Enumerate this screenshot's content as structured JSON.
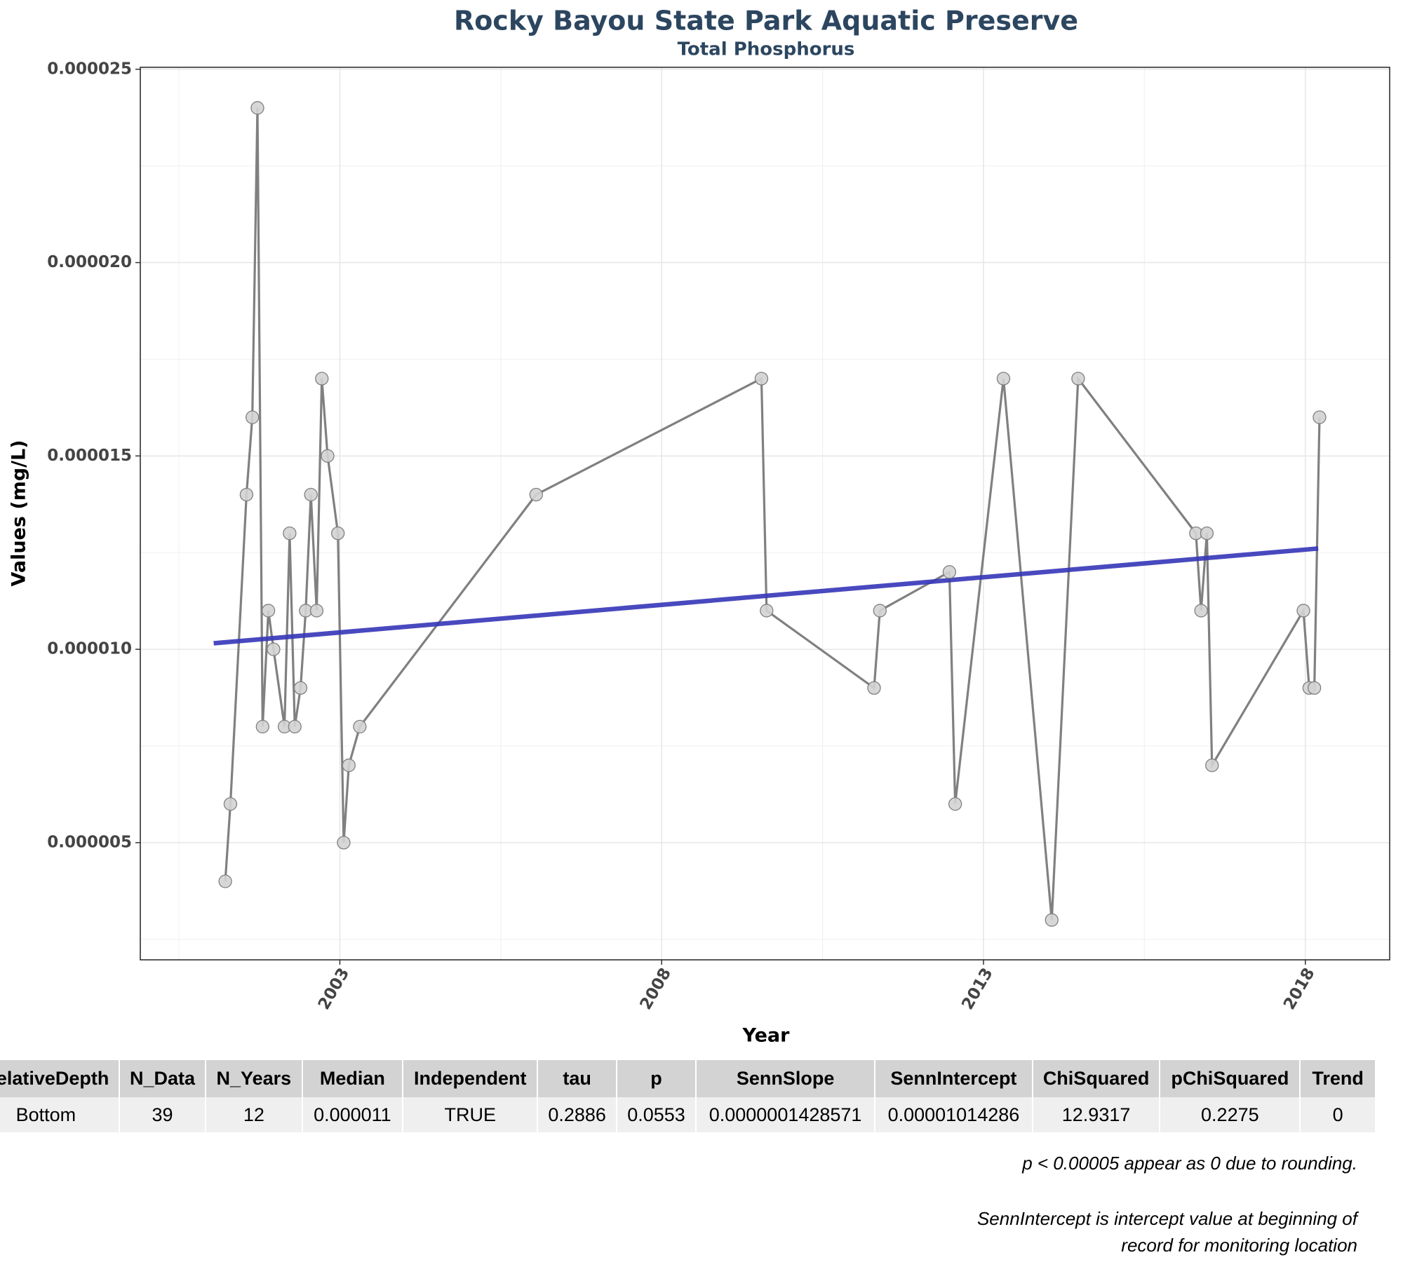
{
  "chart_data": {
    "type": "line",
    "title": "Rocky Bayou State Park Aquatic Preserve",
    "subtitle": "Total Phosphorus",
    "x_label": "Year",
    "y_label": "Values (mg/L)",
    "x": [
      2001.22,
      2001.3,
      2001.55,
      2001.64,
      2001.72,
      2001.8,
      2001.89,
      2001.97,
      2002.14,
      2002.22,
      2002.3,
      2002.39,
      2002.47,
      2002.55,
      2002.64,
      2002.72,
      2002.81,
      2002.97,
      2003.06,
      2003.14,
      2003.31,
      2006.05,
      2009.55,
      2009.63,
      2011.3,
      2011.39,
      2012.47,
      2012.56,
      2013.31,
      2014.06,
      2014.47,
      2016.3,
      2016.38,
      2016.47,
      2016.55,
      2017.97,
      2018.06,
      2018.14,
      2018.22
    ],
    "values": [
      4e-06,
      6e-06,
      1.4e-05,
      1.6e-05,
      2.4e-05,
      8e-06,
      1.1e-05,
      1e-05,
      8e-06,
      1.3e-05,
      8e-06,
      9e-06,
      1.1e-05,
      1.4e-05,
      1.1e-05,
      1.7e-05,
      1.5e-05,
      1.3e-05,
      5e-06,
      7e-06,
      8e-06,
      1.4e-05,
      1.7e-05,
      1.1e-05,
      9e-06,
      1.1e-05,
      1.2e-05,
      6e-06,
      1.7e-05,
      3e-06,
      1.7e-05,
      1.3e-05,
      1.1e-05,
      1.3e-05,
      7e-06,
      1.1e-05,
      9e-06,
      9e-06,
      1.6e-05
    ],
    "color": "#808080",
    "marker_fill": "#d3d3d3",
    "trend": {
      "x": [
        2001.04,
        2018.2
      ],
      "values": [
        1.0156e-05,
        1.2607e-05
      ],
      "color": "#3535b8"
    },
    "xlim": [
      1999.9,
      2019.31
    ],
    "xticks": [
      2003,
      2008,
      2013,
      2018
    ],
    "x_minor_ticks": [
      2000.5,
      2005.5,
      2010.5,
      2015.5
    ],
    "ylim": [
      1.97e-06,
      2.505e-05
    ],
    "yticks": [
      5e-06,
      {
        "value": 1e-05,
        "label": "0.000010"
      },
      1.5e-05,
      {
        "value": 2e-05,
        "label": "0.000020"
      },
      2.5e-05
    ],
    "y_minor_ticks": [
      2.5e-06,
      7.5e-06,
      1.25e-05,
      1.75e-05,
      2.25e-05
    ],
    "grid": true
  },
  "table": {
    "header": [
      "RelativeDepth",
      "N_Data",
      "N_Years",
      "Median",
      "Independent",
      "tau",
      "p",
      "SennSlope",
      "SennIntercept",
      "ChiSquared",
      "pChiSquared",
      "Trend"
    ],
    "rows": [
      [
        "Bottom",
        "39",
        "12",
        "0.000011",
        "TRUE",
        "0.2886",
        "0.0553",
        "0.0000001428571",
        "0.00001014286",
        "12.9317",
        "0.2275",
        "0"
      ]
    ]
  },
  "notes": [
    "p < 0.00005 appear as 0 due to rounding.",
    "SennIntercept is intercept value at beginning of",
    "record for monitoring location"
  ]
}
